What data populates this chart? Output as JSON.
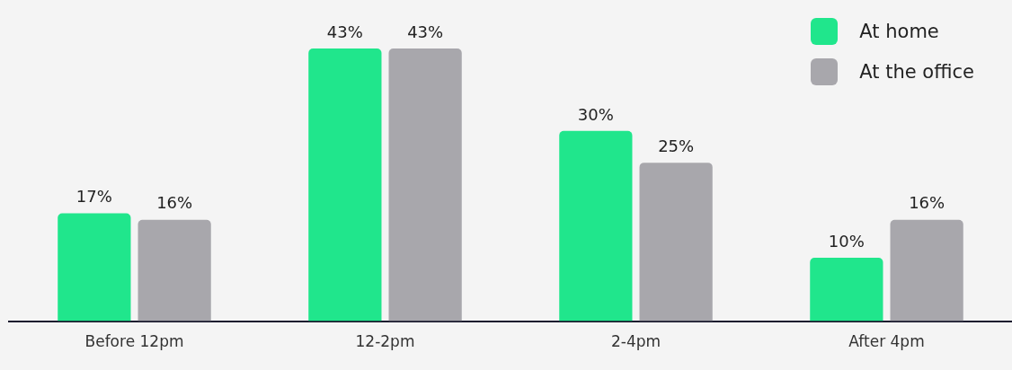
{
  "chart_data": {
    "type": "bar",
    "categories": [
      "Before 12pm",
      "12-2pm",
      "2-4pm",
      "After 4pm"
    ],
    "series": [
      {
        "name": "At home",
        "color": "#20e68c",
        "values": [
          17,
          43,
          30,
          10
        ],
        "value_labels": [
          "17%",
          "43%",
          "30%",
          "10%"
        ]
      },
      {
        "name": "At the office",
        "color": "#a8a7ac",
        "values": [
          16,
          43,
          25,
          16
        ],
        "value_labels": [
          "16%",
          "43%",
          "25%",
          "16%"
        ]
      }
    ],
    "grid": false,
    "legend": "top right"
  }
}
